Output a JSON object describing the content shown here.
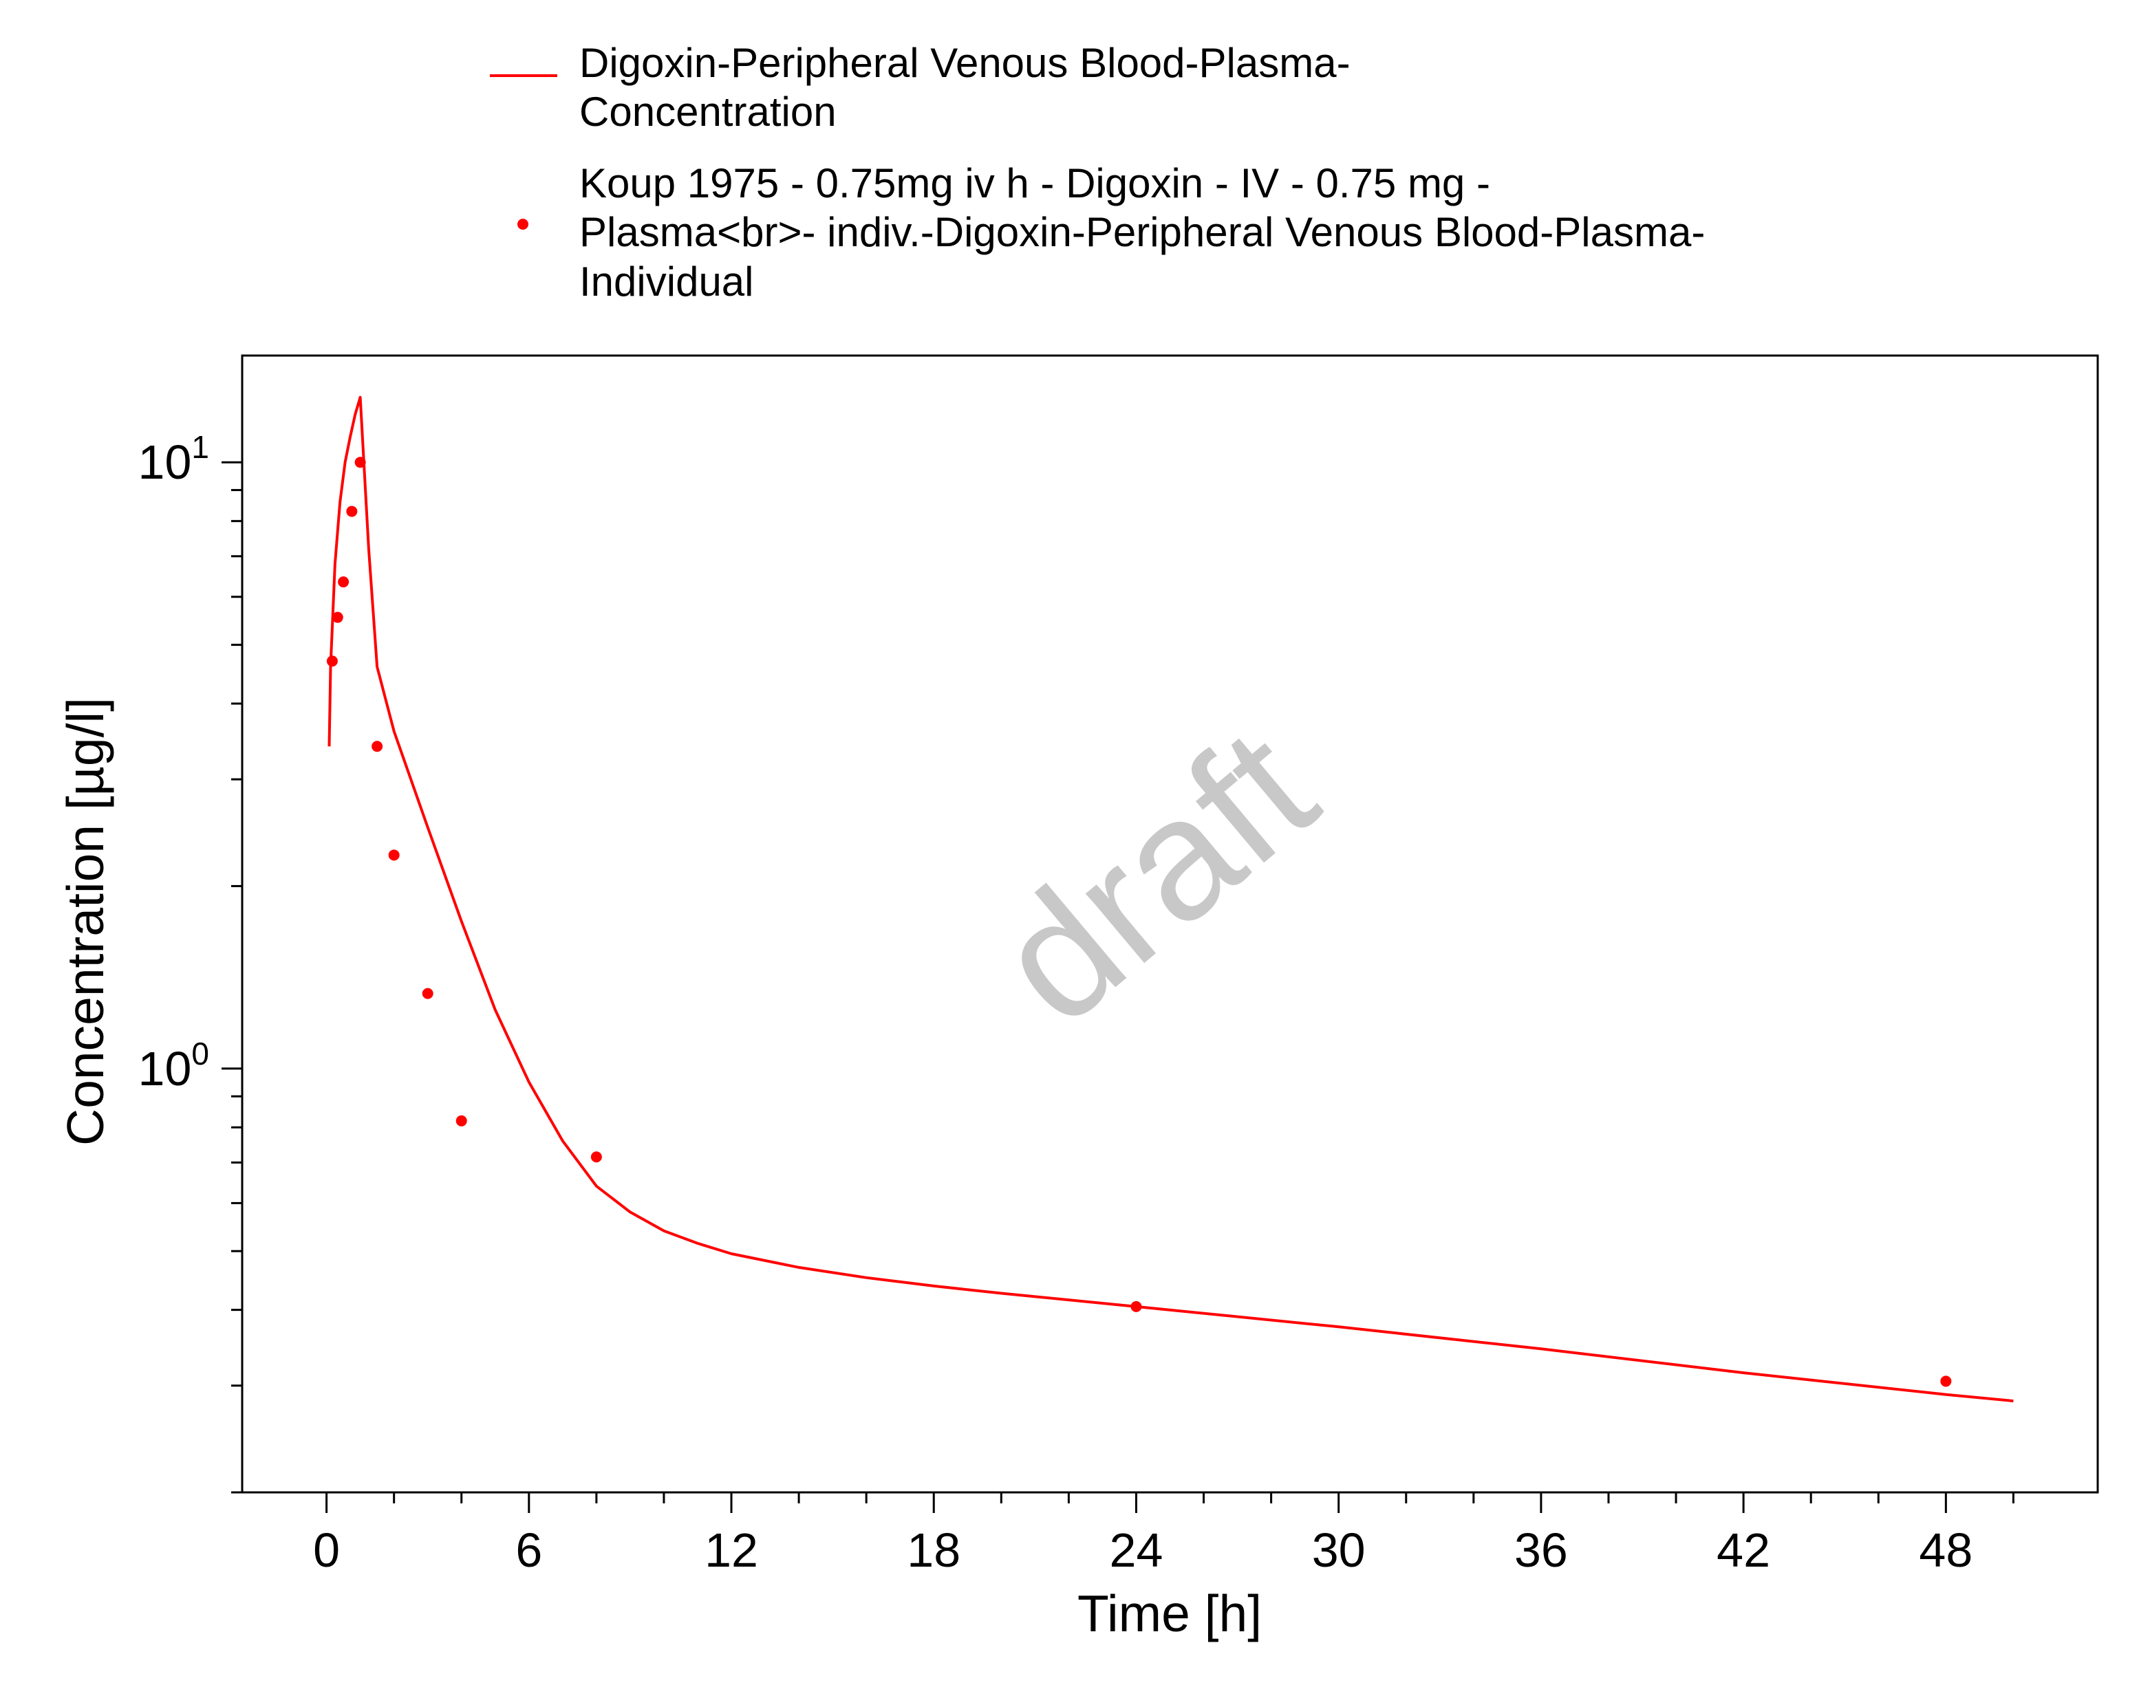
{
  "chart_data": {
    "type": "line",
    "xlabel": "Time [h]",
    "ylabel": "Concentration [µg/l]",
    "xlim": [
      -2.5,
      52.5
    ],
    "ylim": [
      0.2,
      15.0
    ],
    "yscale": "log",
    "grid": false,
    "legend_position": "top",
    "x_ticks": [
      "0",
      "6",
      "12",
      "18",
      "24",
      "30",
      "36",
      "42",
      "48"
    ],
    "y_ticks": [
      {
        "base": "10",
        "exp": "0",
        "value": 1
      },
      {
        "base": "10",
        "exp": "1",
        "value": 10
      }
    ],
    "watermark": "draft",
    "series": [
      {
        "name": "Digoxin-Peripheral Venous Blood-Plasma-Concentration",
        "kind": "line",
        "color": "#ff0000",
        "x": [
          0.08,
          0.12,
          0.25,
          0.4,
          0.55,
          0.7,
          0.85,
          1.0,
          1.25,
          1.5,
          2.0,
          3.0,
          4.0,
          5.0,
          6.0,
          7.0,
          8.0,
          9.0,
          10.0,
          11.0,
          12.0,
          14.0,
          16.0,
          18.0,
          20.0,
          24.0,
          30.0,
          36.0,
          42.0,
          48.0,
          50.0
        ],
        "y": [
          3.4,
          4.6,
          6.8,
          8.6,
          10.0,
          11.0,
          12.0,
          12.8,
          7.2,
          4.6,
          3.6,
          2.5,
          1.75,
          1.25,
          0.95,
          0.76,
          0.64,
          0.58,
          0.54,
          0.515,
          0.495,
          0.47,
          0.452,
          0.438,
          0.426,
          0.405,
          0.375,
          0.345,
          0.315,
          0.29,
          0.283
        ]
      },
      {
        "name": "Koup 1975 - 0.75mg iv h - Digoxin - IV - 0.75 mg - Plasma<br>- indiv.-Digoxin-Peripheral Venous Blood-Plasma-Individual",
        "kind": "scatter",
        "color": "#ff0000",
        "x": [
          0.17,
          0.33,
          0.5,
          0.75,
          1.0,
          1.5,
          2.0,
          3.0,
          4.0,
          8.0,
          24.0,
          48.0
        ],
        "y": [
          4.7,
          5.55,
          6.35,
          8.3,
          10.0,
          3.4,
          2.25,
          1.33,
          0.82,
          0.715,
          0.405,
          0.305
        ]
      }
    ]
  },
  "legend": {
    "line_label_1": "Digoxin-Peripheral Venous Blood-Plasma-",
    "line_label_2": "Concentration",
    "scatter_label_1": "Koup 1975 - 0.75mg iv h - Digoxin - IV - 0.75 mg -",
    "scatter_label_2": "Plasma<br>- indiv.-Digoxin-Peripheral Venous Blood-Plasma-",
    "scatter_label_3": "Individual"
  }
}
